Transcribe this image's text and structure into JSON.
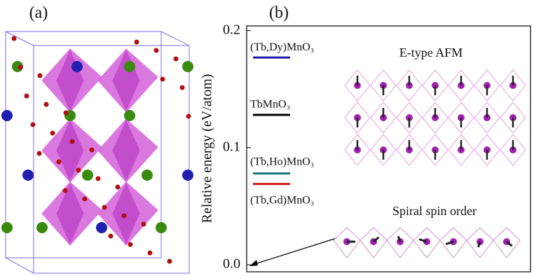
{
  "panels": [
    "(a)",
    "(b)"
  ],
  "chart_data": {
    "type": "level",
    "ylabel": "Relative energy (eV/atom)",
    "ylim": [
      -0.006,
      0.204
    ],
    "yticks": [
      {
        "value": 0,
        "label": "0.0"
      },
      0.1,
      0.2
    ],
    "categories": [
      "(Tb,Dy)MnO₃",
      "TbMnO₃",
      "(Tb,Ho)MnO₃",
      "(Tb,Gd)MnO₃"
    ],
    "values": [
      0.177,
      0.128,
      0.078,
      0.069
    ],
    "colors": [
      "#1a1aa6",
      "#000000",
      "#1a7a7a",
      "#d41a1a"
    ],
    "insets": [
      "E-type AFM",
      "Spiral spin order"
    ]
  }
}
